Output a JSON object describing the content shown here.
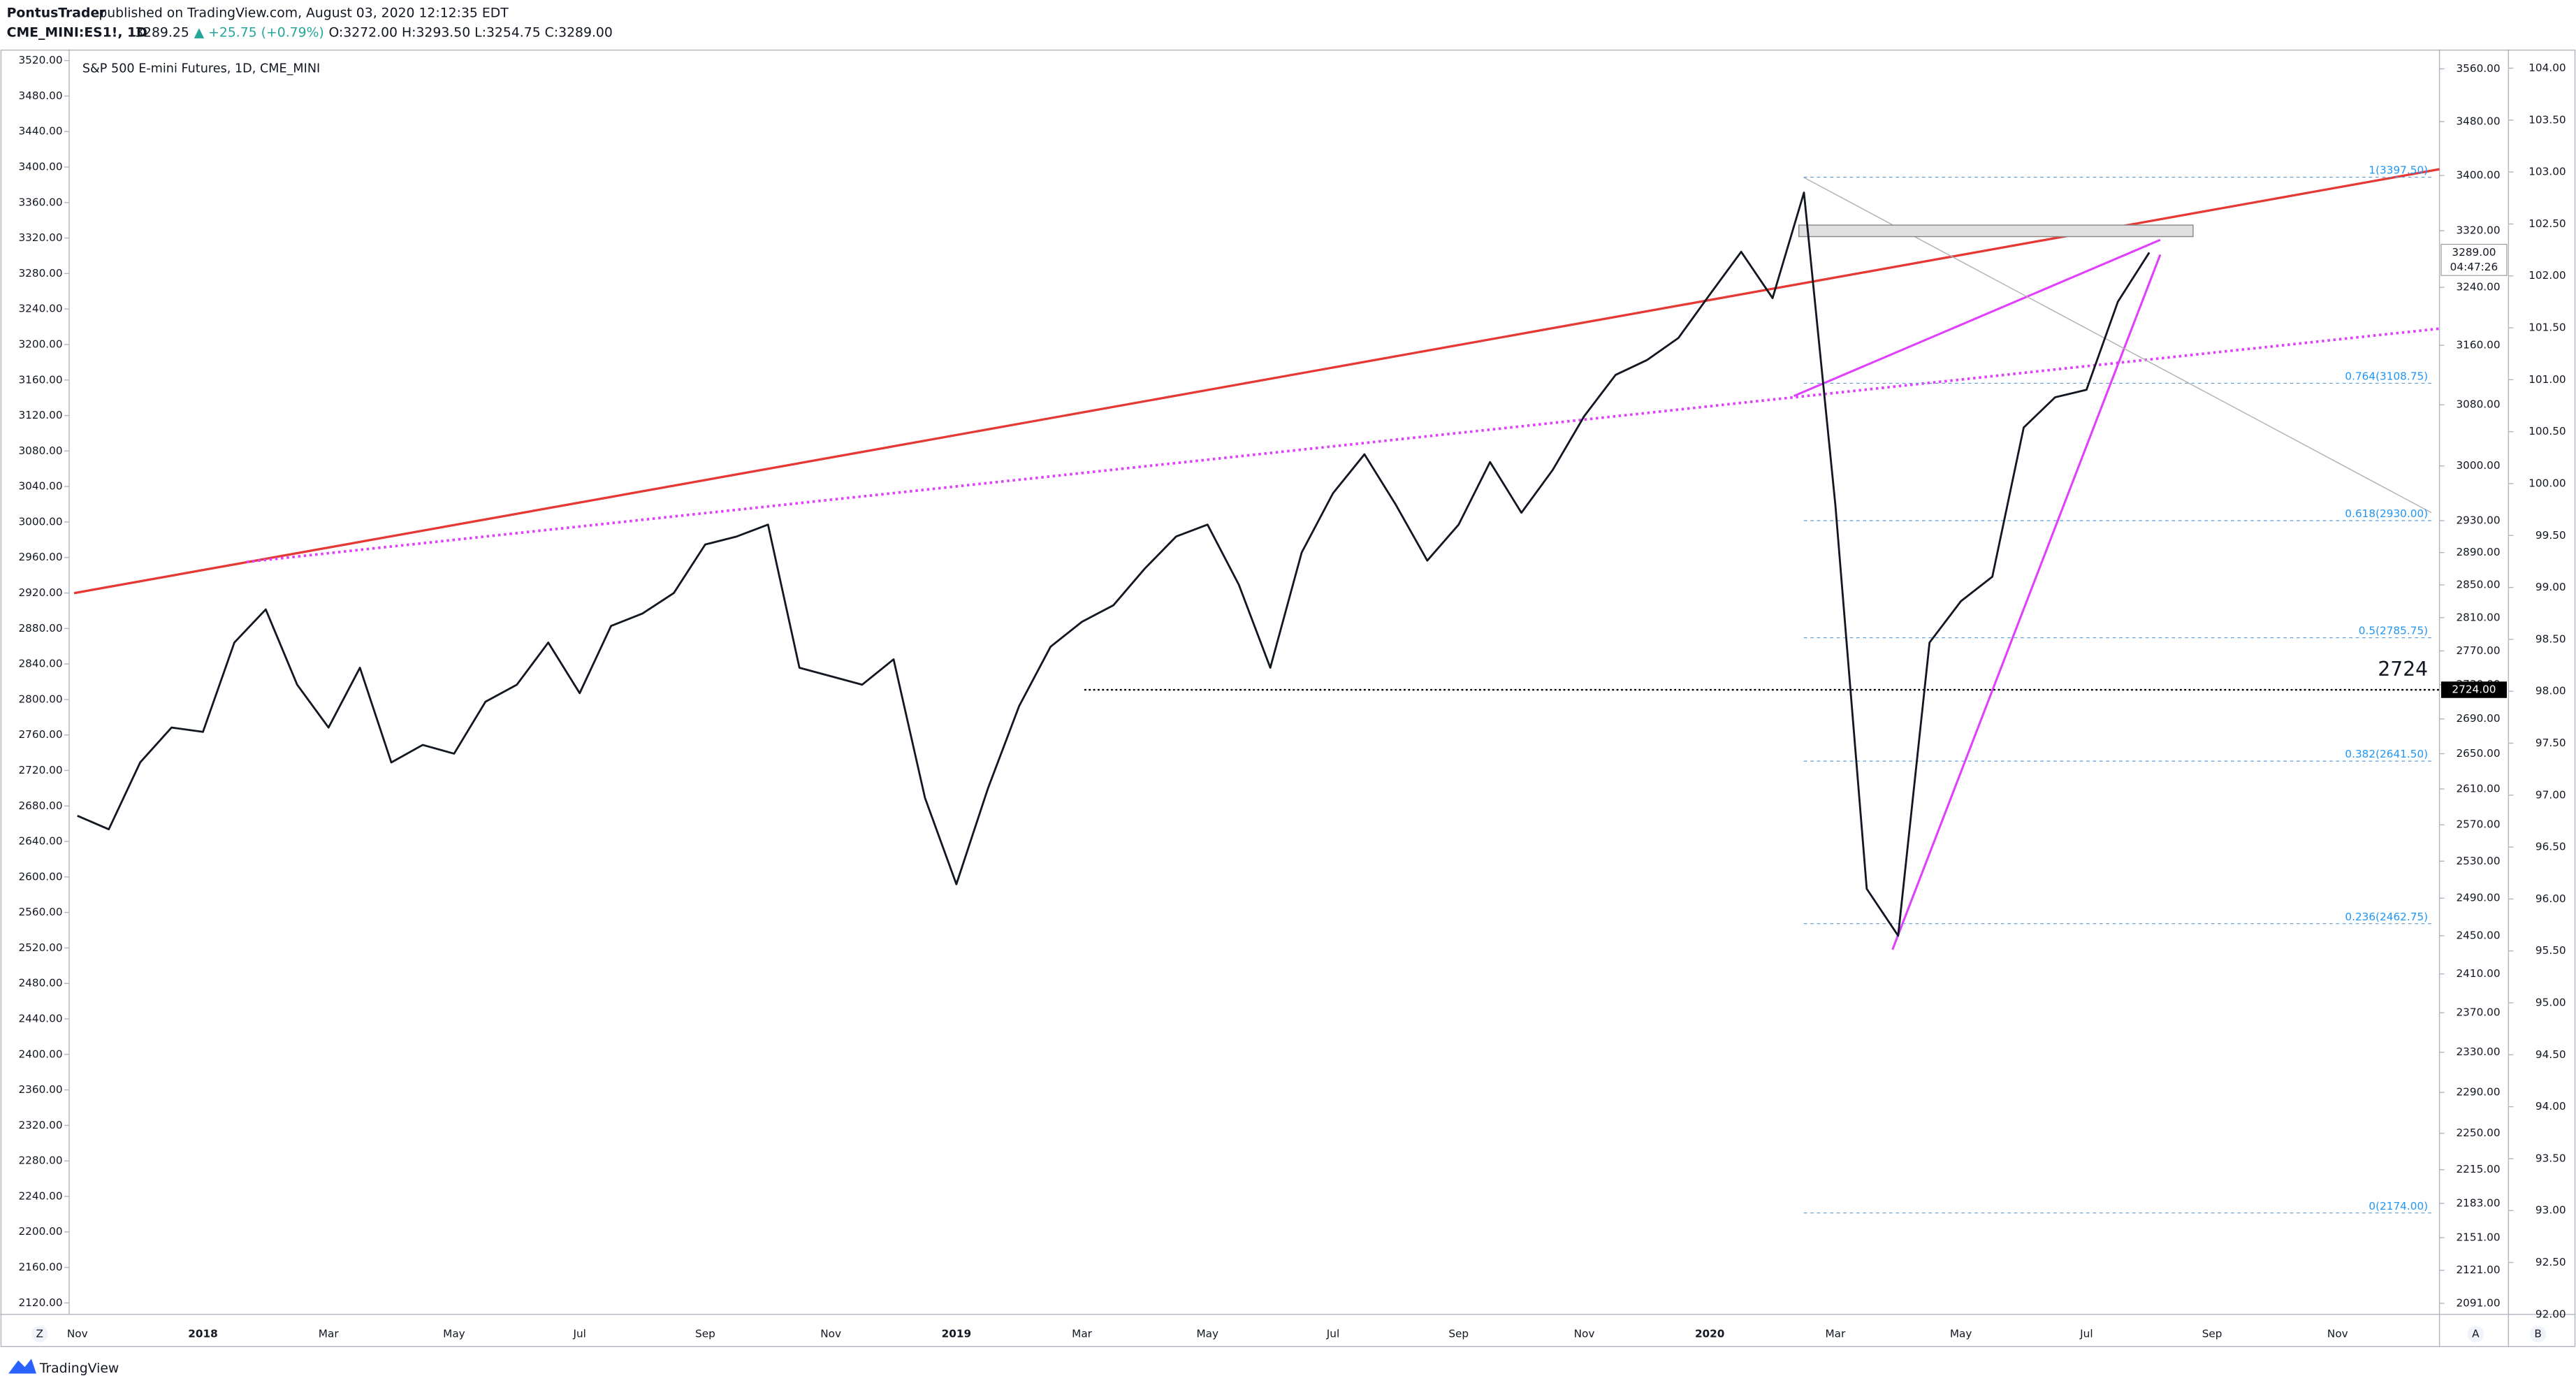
{
  "header": {
    "author": "PontusTrader",
    "published": "published on TradingView.com, August 03, 2020 12:12:35 EDT",
    "symbol": "CME_MINI:ES1!, 1D",
    "last": "3289.25",
    "change": "▲ +25.75 (+0.79%)",
    "ohlc": "O:3272.00 H:3293.50 L:3254.75 C:3289.00"
  },
  "footer": {
    "brand": "TradingView",
    "buttons": [
      "Z",
      "A",
      "B"
    ]
  },
  "chart_data": {
    "type": "line",
    "title": "S&P 500 E-mini Futures, 1D, CME_MINI",
    "color": "#131722",
    "categories": [
      "Nov",
      null,
      null,
      null,
      "2018",
      null,
      null,
      null,
      "Mar",
      null,
      null,
      null,
      "May",
      null,
      null,
      null,
      "Jul",
      null,
      null,
      null,
      "Sep",
      null,
      null,
      null,
      "Nov",
      null,
      null,
      null,
      "2019",
      null,
      null,
      null,
      "Mar",
      null,
      null,
      null,
      "May",
      null,
      null,
      null,
      "Jul",
      null,
      null,
      null,
      "Sep",
      null,
      null,
      null,
      "Nov",
      null,
      null,
      null,
      "2020",
      null,
      null,
      null,
      "Mar",
      null,
      null,
      null,
      "May",
      null,
      null,
      null,
      "Jul",
      null,
      null,
      null,
      "Sep",
      null,
      null,
      null,
      "Nov"
    ],
    "values": [
      2580,
      2565,
      2640,
      2680,
      2675,
      2780,
      2820,
      2730,
      2680,
      2750,
      2640,
      2660,
      2650,
      2710,
      2730,
      2780,
      2720,
      2800,
      2815,
      2840,
      2900,
      2910,
      2925,
      2750,
      2740,
      2730,
      2760,
      2600,
      2505,
      2610,
      2705,
      2775,
      2805,
      2825,
      2870,
      2910,
      2925,
      2850,
      2750,
      2890,
      2965,
      3015,
      2950,
      2880,
      2925,
      3005,
      2940,
      2995,
      3065,
      3120,
      3140,
      3170,
      3230,
      3290,
      3225,
      3375,
      2950,
      2500,
      2450,
      2780,
      2830,
      2860,
      3050,
      3090,
      3100,
      3220,
      3289,
      null,
      null,
      null,
      null,
      null,
      null
    ],
    "log_scale": true,
    "ylim": [
      2081,
      3585
    ],
    "yticks": [
      {
        "value": 2091,
        "label": "2091.00"
      },
      {
        "value": 2121,
        "label": "2121.00"
      },
      {
        "value": 2151,
        "label": "2151.00"
      },
      {
        "value": 2183,
        "label": "2183.00"
      },
      {
        "value": 2215,
        "label": "2215.00"
      },
      {
        "value": 2250,
        "label": "2250.00"
      },
      {
        "value": 2290,
        "label": "2290.00"
      },
      {
        "value": 2330,
        "label": "2330.00"
      },
      {
        "value": 2370,
        "label": "2370.00"
      },
      {
        "value": 2410,
        "label": "2410.00"
      },
      {
        "value": 2450,
        "label": "2450.00"
      },
      {
        "value": 2490,
        "label": "2490.00"
      },
      {
        "value": 2530,
        "label": "2530.00"
      },
      {
        "value": 2570,
        "label": "2570.00"
      },
      {
        "value": 2610,
        "label": "2610.00"
      },
      {
        "value": 2650,
        "label": "2650.00"
      },
      {
        "value": 2690,
        "label": "2690.00"
      },
      {
        "value": 2730,
        "label": "2730.00"
      },
      {
        "value": 2770,
        "label": "2770.00"
      },
      {
        "value": 2810,
        "label": "2810.00"
      },
      {
        "value": 2850,
        "label": "2850.00"
      },
      {
        "value": 2890,
        "label": "2890.00"
      },
      {
        "value": 2930,
        "label": "2930.00"
      },
      {
        "value": 3000,
        "label": "3000.00"
      },
      {
        "value": 3080,
        "label": "3080.00"
      },
      {
        "value": 3160,
        "label": "3160.00"
      },
      {
        "value": 3240,
        "label": "3240.00"
      },
      {
        "value": 3320,
        "label": "3320.00"
      },
      {
        "value": 3400,
        "label": "3400.00"
      },
      {
        "value": 3480,
        "label": "3480.00"
      },
      {
        "value": 3560,
        "label": "3560.00"
      }
    ],
    "y2lim": [
      2107,
      3529
    ],
    "y2ticks": [
      {
        "value": 2120,
        "label": "2120.00"
      },
      {
        "value": 2160,
        "label": "2160.00"
      },
      {
        "value": 2200,
        "label": "2200.00"
      },
      {
        "value": 2240,
        "label": "2240.00"
      },
      {
        "value": 2280,
        "label": "2280.00"
      },
      {
        "value": 2320,
        "label": "2320.00"
      },
      {
        "value": 2360,
        "label": "2360.00"
      },
      {
        "value": 2400,
        "label": "2400.00"
      },
      {
        "value": 2440,
        "label": "2440.00"
      },
      {
        "value": 2480,
        "label": "2480.00"
      },
      {
        "value": 2520,
        "label": "2520.00"
      },
      {
        "value": 2560,
        "label": "2560.00"
      },
      {
        "value": 2600,
        "label": "2600.00"
      },
      {
        "value": 2640,
        "label": "2640.00"
      },
      {
        "value": 2680,
        "label": "2680.00"
      },
      {
        "value": 2720,
        "label": "2720.00"
      },
      {
        "value": 2760,
        "label": "2760.00"
      },
      {
        "value": 2800,
        "label": "2800.00"
      },
      {
        "value": 2840,
        "label": "2840.00"
      },
      {
        "value": 2880,
        "label": "2880.00"
      },
      {
        "value": 2920,
        "label": "2920.00"
      },
      {
        "value": 2960,
        "label": "2960.00"
      },
      {
        "value": 3000,
        "label": "3000.00"
      },
      {
        "value": 3040,
        "label": "3040.00"
      },
      {
        "value": 3080,
        "label": "3080.00"
      },
      {
        "value": 3120,
        "label": "3120.00"
      },
      {
        "value": 3160,
        "label": "3160.00"
      },
      {
        "value": 3200,
        "label": "3200.00"
      },
      {
        "value": 3240,
        "label": "3240.00"
      },
      {
        "value": 3280,
        "label": "3280.00"
      },
      {
        "value": 3320,
        "label": "3320.00"
      },
      {
        "value": 3360,
        "label": "3360.00"
      },
      {
        "value": 3400,
        "label": "3400.00"
      },
      {
        "value": 3440,
        "label": "3440.00"
      },
      {
        "value": 3480,
        "label": "3480.00"
      },
      {
        "value": 3520,
        "label": "3520.00"
      }
    ],
    "y3lim": [
      92,
      104.15
    ],
    "y3ticks": [
      {
        "value": 92,
        "label": "92.00"
      },
      {
        "value": 92.5,
        "label": "92.50"
      },
      {
        "value": 93,
        "label": "93.00"
      },
      {
        "value": 93.5,
        "label": "93.50"
      },
      {
        "value": 94,
        "label": "94.00"
      },
      {
        "value": 94.5,
        "label": "94.50"
      },
      {
        "value": 95,
        "label": "95.00"
      },
      {
        "value": 95.5,
        "label": "95.50"
      },
      {
        "value": 96,
        "label": "96.00"
      },
      {
        "value": 96.5,
        "label": "96.50"
      },
      {
        "value": 97,
        "label": "97.00"
      },
      {
        "value": 97.5,
        "label": "97.50"
      },
      {
        "value": 98,
        "label": "98.00"
      },
      {
        "value": 98.5,
        "label": "98.50"
      },
      {
        "value": 99,
        "label": "99.00"
      },
      {
        "value": 99.5,
        "label": "99.50"
      },
      {
        "value": 100,
        "label": "100.00"
      },
      {
        "value": 100.5,
        "label": "100.50"
      },
      {
        "value": 101,
        "label": "101.00"
      },
      {
        "value": 101.5,
        "label": "101.50"
      },
      {
        "value": 102,
        "label": "102.00"
      },
      {
        "value": 102.5,
        "label": "102.50"
      },
      {
        "value": 103,
        "label": "103.00"
      },
      {
        "value": 103.5,
        "label": "103.50"
      },
      {
        "value": 104,
        "label": "104.00"
      }
    ],
    "fib_levels": [
      {
        "value": 3397.5,
        "label": "1(3397.50)"
      },
      {
        "value": 3108.75,
        "label": "0.764(3108.75)"
      },
      {
        "value": 2930,
        "label": "0.618(2930.00)"
      },
      {
        "value": 2785.75,
        "label": "0.5(2785.75)"
      },
      {
        "value": 2641.5,
        "label": "0.382(2641.50)"
      },
      {
        "value": 2462.75,
        "label": "0.236(2462.75)"
      },
      {
        "value": 2174,
        "label": "0(2174.00)"
      }
    ],
    "horizontal_line": {
      "value": 2724,
      "label": "2724.00"
    },
    "last_price": {
      "value": 3289,
      "label": "3289.00",
      "countdown": "04:47:26"
    }
  }
}
